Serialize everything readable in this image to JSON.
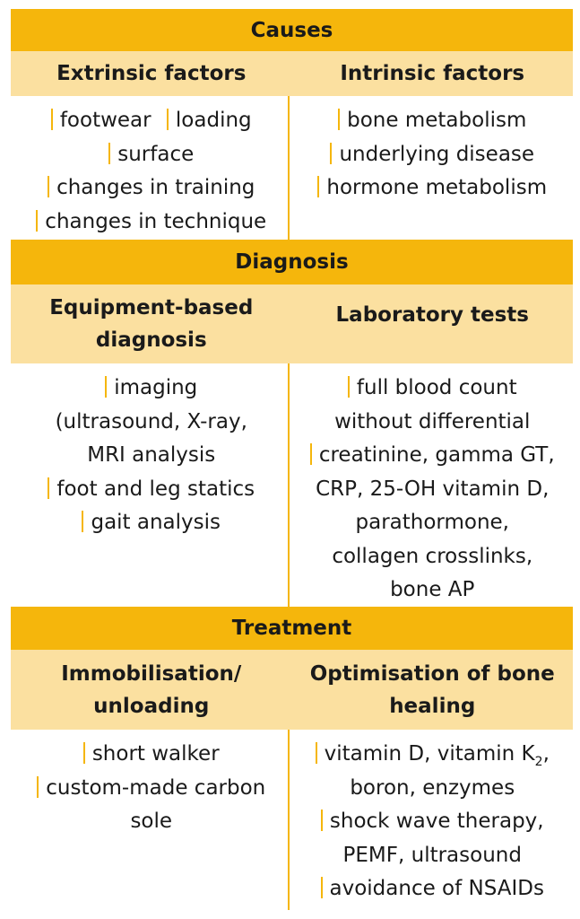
{
  "causes": {
    "title": "Causes",
    "left_header": "Extrinsic factors",
    "right_header": "Intrinsic factors",
    "left_items": [
      "footwear",
      "loading",
      "surface",
      "changes in training",
      "changes in technique"
    ],
    "right_items": [
      "bone metabolism",
      "underlying disease",
      "hormone metabolism"
    ]
  },
  "diagnosis": {
    "title": "Diagnosis",
    "left_header_line1": "Equipment-based",
    "left_header_line2": "diagnosis",
    "right_header": "Laboratory tests",
    "left_items": {
      "imaging": [
        "imaging",
        "(ultrasound, X-ray,",
        "MRI analysis"
      ],
      "statics": "foot and leg statics",
      "gait": "gait analysis"
    },
    "right_items": {
      "blood": [
        "full blood count",
        "without differential"
      ],
      "chem": [
        "creatinine, gamma GT,",
        "CRP, 25-OH vitamin D,",
        "parathormone,",
        "collagen crosslinks,",
        "bone AP"
      ]
    }
  },
  "treatment": {
    "title": "Treatment",
    "left_header_line1": "Immobilisation/",
    "left_header_line2": "unloading",
    "right_header_line1": "Optimisation of bone",
    "right_header_line2": "healing",
    "left_items": {
      "walker": "short walker",
      "sole": [
        "custom-made carbon",
        "sole"
      ]
    },
    "right_items": {
      "vitamin_prefix": "vitamin D, vitamin K",
      "vitamin_sub": "2",
      "vitamin_suffix": ",",
      "vitamin_line2": "boron, enzymes",
      "shock": [
        "shock wave therapy,",
        "PEMF, ultrasound"
      ],
      "nsaids": "avoidance of NSAIDs"
    }
  },
  "colors": {
    "accent": "#f5b60c",
    "subheader": "#fbe0a0"
  }
}
